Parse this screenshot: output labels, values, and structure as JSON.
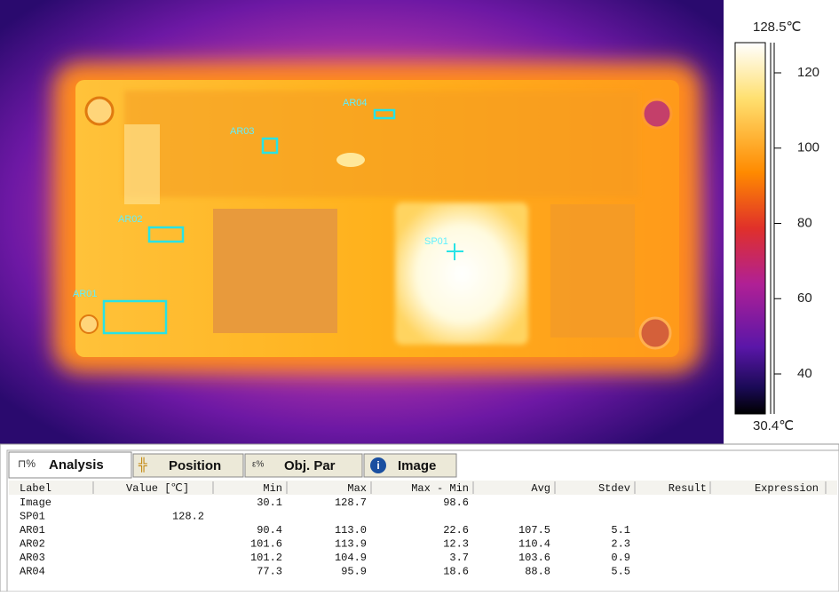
{
  "image": {
    "areas": [
      "AR01",
      "AR02",
      "AR03",
      "AR04"
    ],
    "spot": "SP01"
  },
  "scale": {
    "max_label": "128.5℃",
    "min_label": "30.4℃",
    "ticks": [
      120,
      100,
      80,
      60,
      40
    ]
  },
  "tabs": [
    "Analysis",
    "Position",
    "Obj. Par",
    "Image"
  ],
  "table": {
    "headers": [
      "Label",
      "Value [℃]",
      "Min",
      "Max",
      "Max - Min",
      "Avg",
      "Stdev",
      "Result",
      "Expression"
    ],
    "rows": [
      [
        "Image",
        null,
        "30.1",
        "128.7",
        "98.6",
        null,
        null,
        null,
        null
      ],
      [
        "SP01",
        "128.2",
        null,
        null,
        null,
        null,
        null,
        null,
        null
      ],
      [
        "AR01",
        null,
        "90.4",
        "113.0",
        "22.6",
        "107.5",
        "5.1",
        null,
        null
      ],
      [
        "AR02",
        null,
        "101.6",
        "113.9",
        "12.3",
        "110.4",
        "2.3",
        null,
        null
      ],
      [
        "AR03",
        null,
        "101.2",
        "104.9",
        "3.7",
        "103.6",
        "0.9",
        null,
        null
      ],
      [
        "AR04",
        null,
        "77.3",
        "95.9",
        "18.6",
        "88.8",
        "5.5",
        null,
        null
      ]
    ]
  }
}
